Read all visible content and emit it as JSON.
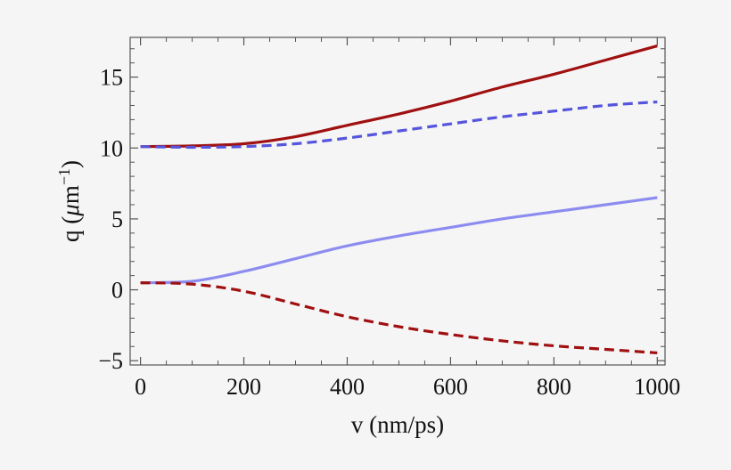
{
  "chart_data": {
    "type": "line",
    "title": "",
    "xlabel": "v (nm/ps)",
    "ylabel_parts": {
      "prefix": "q (",
      "mu": "μ",
      "unit": "m",
      "exponent": "−1",
      "suffix": ")"
    },
    "xlim": [
      -20,
      1015
    ],
    "ylim": [
      -5.3,
      17.8
    ],
    "x_ticks": [
      0,
      200,
      400,
      600,
      800,
      1000
    ],
    "x_tick_labels": [
      "0",
      "200",
      "400",
      "600",
      "800",
      "1000"
    ],
    "y_ticks": [
      -5,
      0,
      5,
      10,
      15
    ],
    "y_tick_labels": [
      "−5",
      "0",
      "5",
      "10",
      "15"
    ],
    "grid": false,
    "x": [
      0,
      100,
      200,
      300,
      400,
      500,
      600,
      700,
      800,
      900,
      1000
    ],
    "series": [
      {
        "name": "dark red solid",
        "color": "#a01010",
        "dash": "solid",
        "values": [
          10.1,
          10.15,
          10.3,
          10.8,
          11.6,
          12.4,
          13.3,
          14.3,
          15.2,
          16.2,
          17.2
        ]
      },
      {
        "name": "blue dashed",
        "color": "#5555dd",
        "dash": "dashed",
        "values": [
          10.1,
          10.05,
          10.1,
          10.3,
          10.7,
          11.2,
          11.7,
          12.2,
          12.6,
          13.0,
          13.25
        ]
      },
      {
        "name": "light blue solid",
        "color": "#8c8cf0",
        "dash": "solid",
        "values": [
          0.5,
          0.6,
          1.3,
          2.2,
          3.1,
          3.8,
          4.4,
          5.0,
          5.5,
          6.0,
          6.5
        ]
      },
      {
        "name": "dark red dashed",
        "color": "#a01010",
        "dash": "dashed",
        "values": [
          0.5,
          0.4,
          -0.1,
          -1.0,
          -1.9,
          -2.6,
          -3.15,
          -3.6,
          -3.95,
          -4.2,
          -4.45
        ]
      }
    ]
  }
}
